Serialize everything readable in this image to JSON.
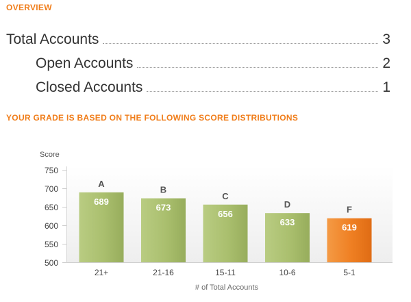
{
  "overview": {
    "heading": "OVERVIEW",
    "rows": [
      {
        "label": "Total Accounts",
        "value": "3"
      },
      {
        "label": "Open Accounts",
        "value": "2"
      },
      {
        "label": "Closed Accounts",
        "value": "1"
      }
    ]
  },
  "grade_section": {
    "heading": "YOUR GRADE IS BASED ON THE FOLLOWING SCORE DISTRIBUTIONS"
  },
  "colors": {
    "accent": "#f07d1a",
    "bar_green": "#a9be6d",
    "bar_orange": "#ef7e1f",
    "text_dark": "#333333"
  },
  "chart_data": {
    "type": "bar",
    "title": "",
    "ylabel": "Score",
    "xlabel": "# of Total Accounts",
    "ylim": [
      500,
      750
    ],
    "yticks": [
      500,
      550,
      600,
      650,
      700,
      750
    ],
    "categories": [
      "21+",
      "21-16",
      "15-11",
      "10-6",
      "5-1"
    ],
    "values": [
      689,
      673,
      656,
      633,
      619
    ],
    "grades": [
      "A",
      "B",
      "C",
      "D",
      "F"
    ],
    "highlight_index": 4,
    "grid": false
  }
}
